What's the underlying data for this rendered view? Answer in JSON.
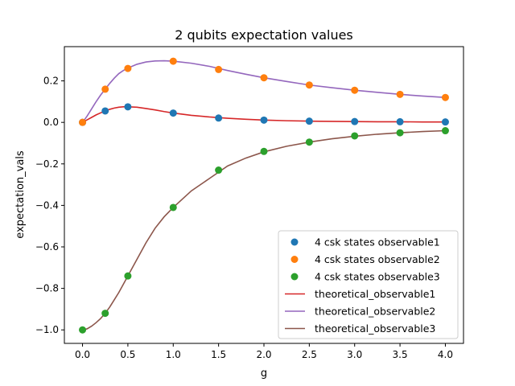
{
  "chart_data": {
    "type": "line",
    "title": "2 qubits expectation values",
    "xlabel": "g",
    "ylabel": "expectation_vals",
    "xlim": [
      -0.2,
      4.2
    ],
    "ylim": [
      -1.065,
      0.365
    ],
    "xticks": [
      {
        "v": 0.0,
        "label": "0.0"
      },
      {
        "v": 0.5,
        "label": "0.5"
      },
      {
        "v": 1.0,
        "label": "1.0"
      },
      {
        "v": 1.5,
        "label": "1.5"
      },
      {
        "v": 2.0,
        "label": "2.0"
      },
      {
        "v": 2.5,
        "label": "2.5"
      },
      {
        "v": 3.0,
        "label": "3.0"
      },
      {
        "v": 3.5,
        "label": "3.5"
      },
      {
        "v": 4.0,
        "label": "4.0"
      }
    ],
    "yticks": [
      {
        "v": 0.2,
        "label": "0.2"
      },
      {
        "v": 0.0,
        "label": "0.0"
      },
      {
        "v": -0.2,
        "label": "−0.2"
      },
      {
        "v": -0.4,
        "label": "−0.4"
      },
      {
        "v": -0.6,
        "label": "−0.6"
      },
      {
        "v": -0.8,
        "label": "−0.8"
      },
      {
        "v": -1.0,
        "label": "−1.0"
      }
    ],
    "grid": false,
    "legend_position": "lower-right",
    "x_points": [
      0.0,
      0.25,
      0.5,
      1.0,
      1.5,
      2.0,
      2.5,
      3.0,
      3.5,
      4.0
    ],
    "scatter_series": [
      {
        "name": "4 csk states observable1",
        "color": "#1f77b4",
        "values": [
          0.0,
          0.055,
          0.075,
          0.045,
          0.021,
          0.011,
          0.006,
          0.004,
          0.003,
          0.002
        ]
      },
      {
        "name": "4 csk states observable2",
        "color": "#ff7f0e",
        "values": [
          0.0,
          0.16,
          0.26,
          0.295,
          0.255,
          0.215,
          0.18,
          0.155,
          0.135,
          0.12
        ]
      },
      {
        "name": "4 csk states observable3",
        "color": "#2ca02c",
        "values": [
          -1.0,
          -0.92,
          -0.74,
          -0.41,
          -0.23,
          -0.14,
          -0.095,
          -0.065,
          -0.05,
          -0.04
        ]
      }
    ],
    "line_x": [
      0.0,
      0.05,
      0.1,
      0.15,
      0.2,
      0.25,
      0.3,
      0.35,
      0.4,
      0.45,
      0.5,
      0.6,
      0.7,
      0.8,
      0.9,
      1.0,
      1.2,
      1.4,
      1.6,
      1.8,
      2.0,
      2.25,
      2.5,
      2.75,
      3.0,
      3.25,
      3.5,
      3.75,
      4.0
    ],
    "line_series": [
      {
        "name": "theoretical_observable1",
        "color": "#d62728",
        "values": [
          0.0,
          0.012,
          0.024,
          0.036,
          0.046,
          0.055,
          0.063,
          0.069,
          0.073,
          0.075,
          0.075,
          0.073,
          0.067,
          0.06,
          0.052,
          0.045,
          0.034,
          0.026,
          0.02,
          0.015,
          0.011,
          0.008,
          0.006,
          0.005,
          0.004,
          0.003,
          0.003,
          0.002,
          0.002
        ]
      },
      {
        "name": "theoretical_observable2",
        "color": "#9467bd",
        "values": [
          0.0,
          0.03,
          0.065,
          0.1,
          0.132,
          0.16,
          0.188,
          0.213,
          0.235,
          0.25,
          0.262,
          0.28,
          0.291,
          0.296,
          0.297,
          0.295,
          0.285,
          0.27,
          0.25,
          0.232,
          0.215,
          0.197,
          0.18,
          0.167,
          0.155,
          0.145,
          0.135,
          0.127,
          0.12
        ]
      },
      {
        "name": "theoretical_observable3",
        "color": "#8c564b",
        "values": [
          -1.0,
          -0.995,
          -0.982,
          -0.965,
          -0.945,
          -0.92,
          -0.89,
          -0.855,
          -0.82,
          -0.78,
          -0.74,
          -0.66,
          -0.58,
          -0.51,
          -0.455,
          -0.41,
          -0.33,
          -0.27,
          -0.21,
          -0.172,
          -0.142,
          -0.115,
          -0.095,
          -0.079,
          -0.067,
          -0.057,
          -0.05,
          -0.044,
          -0.04
        ]
      }
    ]
  }
}
